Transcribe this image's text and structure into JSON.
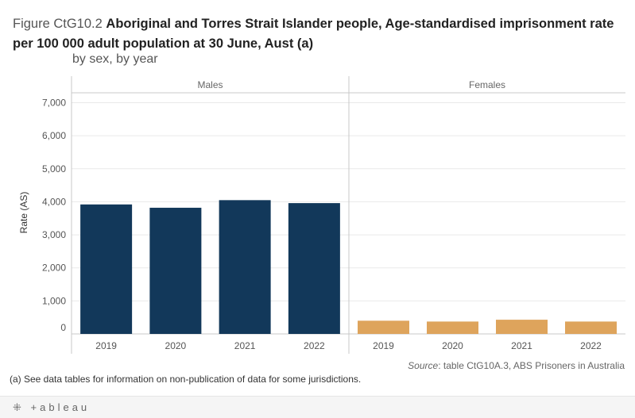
{
  "header": {
    "figure_label": "Figure CtG10.2",
    "title_bold": "Aboriginal and Torres Strait Islander people, Age-standardised imprisonment rate per 100 000 adult population at 30 June, Aust (a)",
    "subtitle": "by sex, by year"
  },
  "footer": {
    "source_label": "Source",
    "source_text": ": table CtG10A.3, ABS Prisoners in Australia",
    "footnote": "(a) See data tables for information on non-publication of data for some jurisdictions.",
    "logo_text": "+ableau"
  },
  "colors": {
    "males": "#12385a",
    "females": "#dea45c",
    "grid": "#e9e9e9",
    "axis": "#c8c8c8"
  },
  "icons": {
    "logo": "tableau-plus-icon"
  },
  "chart_data": {
    "type": "bar",
    "ylabel": "Rate (AS)",
    "ylim": [
      0,
      7300
    ],
    "yticks": [
      0,
      1000,
      2000,
      3000,
      4000,
      5000,
      6000,
      7000
    ],
    "ytick_labels": [
      "0",
      "1,000",
      "2,000",
      "3,000",
      "4,000",
      "5,000",
      "6,000",
      "7,000"
    ],
    "grid": true,
    "panels": [
      {
        "name": "Males",
        "categories": [
          "2019",
          "2020",
          "2021",
          "2022"
        ],
        "values": [
          3920,
          3820,
          4050,
          3960
        ],
        "color": "#12385a"
      },
      {
        "name": "Females",
        "categories": [
          "2019",
          "2020",
          "2021",
          "2022"
        ],
        "values": [
          400,
          375,
          430,
          375
        ],
        "color": "#dea45c"
      }
    ]
  }
}
